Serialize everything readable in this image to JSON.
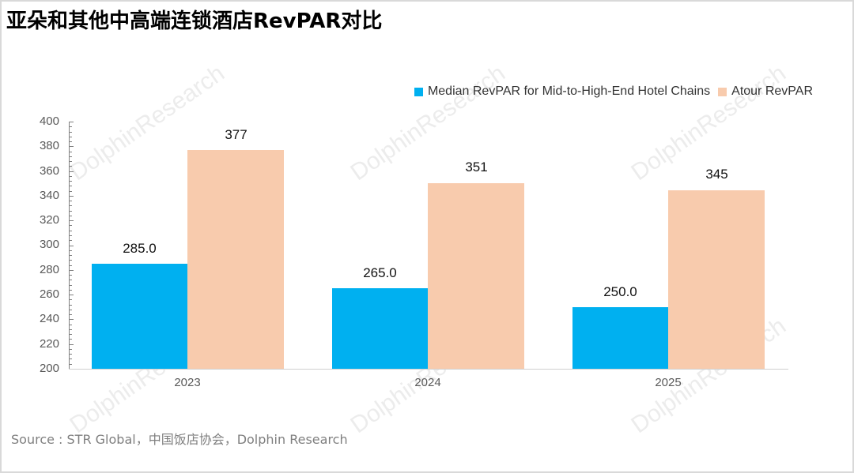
{
  "title": "亚朵和其他中高端连锁酒店RevPAR对比",
  "source": "Source : STR Global，中国饭店协会，Dolphin Research",
  "watermark": "DolphinResearch",
  "colors": {
    "median_series": "#00b0f0",
    "atour_series": "#f8cbad",
    "axis": "#7f7f7f",
    "tick_text": "#595959"
  },
  "legend": [
    {
      "label": "Median RevPAR for Mid-to-High-End Hotel Chains",
      "color": "#00b0f0"
    },
    {
      "label": "Atour RevPAR",
      "color": "#f8cbad"
    }
  ],
  "chart_data": {
    "type": "bar",
    "title": "亚朵和其他中高端连锁酒店RevPAR对比",
    "categories": [
      "2023",
      "2024",
      "2025"
    ],
    "series": [
      {
        "name": "Median RevPAR for Mid-to-High-End Hotel Chains",
        "values": [
          285.0,
          265.0,
          250.0
        ],
        "labels": [
          "285.0",
          "265.0",
          "250.0"
        ],
        "color": "#00b0f0"
      },
      {
        "name": "Atour RevPAR",
        "values": [
          377,
          351,
          345
        ],
        "labels": [
          "377",
          "351",
          "345"
        ],
        "color": "#f8cbad"
      }
    ],
    "xlabel": "",
    "ylabel": "",
    "ylim": [
      200,
      400
    ],
    "yticks": [
      "400",
      "380",
      "360",
      "340",
      "320",
      "300",
      "280",
      "260",
      "240",
      "220",
      "200"
    ],
    "grid": false,
    "legend_position": "top-right",
    "source": "Source : STR Global，中国饭店协会，Dolphin Research"
  }
}
